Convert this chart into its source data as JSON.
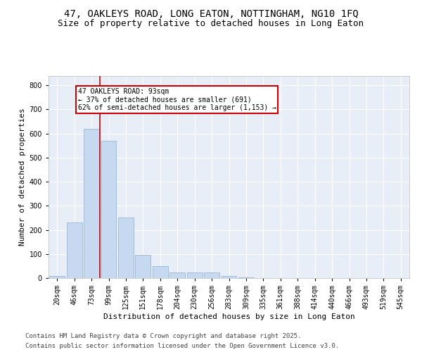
{
  "title_line1": "47, OAKLEYS ROAD, LONG EATON, NOTTINGHAM, NG10 1FQ",
  "title_line2": "Size of property relative to detached houses in Long Eaton",
  "xlabel": "Distribution of detached houses by size in Long Eaton",
  "ylabel": "Number of detached properties",
  "bar_color": "#c6d9f0",
  "bar_edge_color": "#8ab0d0",
  "background_color": "#e8eef8",
  "grid_color": "#ffffff",
  "annotation_box_color": "#cc0000",
  "vline_color": "#cc0000",
  "annotation_text": "47 OAKLEYS ROAD: 93sqm\n← 37% of detached houses are smaller (691)\n62% of semi-detached houses are larger (1,153) →",
  "categories": [
    "20sqm",
    "46sqm",
    "73sqm",
    "99sqm",
    "125sqm",
    "151sqm",
    "178sqm",
    "204sqm",
    "230sqm",
    "256sqm",
    "283sqm",
    "309sqm",
    "335sqm",
    "361sqm",
    "388sqm",
    "414sqm",
    "440sqm",
    "466sqm",
    "493sqm",
    "519sqm",
    "545sqm"
  ],
  "values": [
    10,
    232,
    620,
    570,
    250,
    97,
    50,
    22,
    22,
    22,
    8,
    2,
    0,
    0,
    0,
    0,
    0,
    0,
    0,
    0,
    0
  ],
  "ylim": [
    0,
    840
  ],
  "yticks": [
    0,
    100,
    200,
    300,
    400,
    500,
    600,
    700,
    800
  ],
  "footer_line1": "Contains HM Land Registry data © Crown copyright and database right 2025.",
  "footer_line2": "Contains public sector information licensed under the Open Government Licence v3.0.",
  "title_fontsize": 10,
  "subtitle_fontsize": 9,
  "axis_label_fontsize": 8,
  "tick_fontsize": 7,
  "footer_fontsize": 6.5,
  "annot_fontsize": 7
}
